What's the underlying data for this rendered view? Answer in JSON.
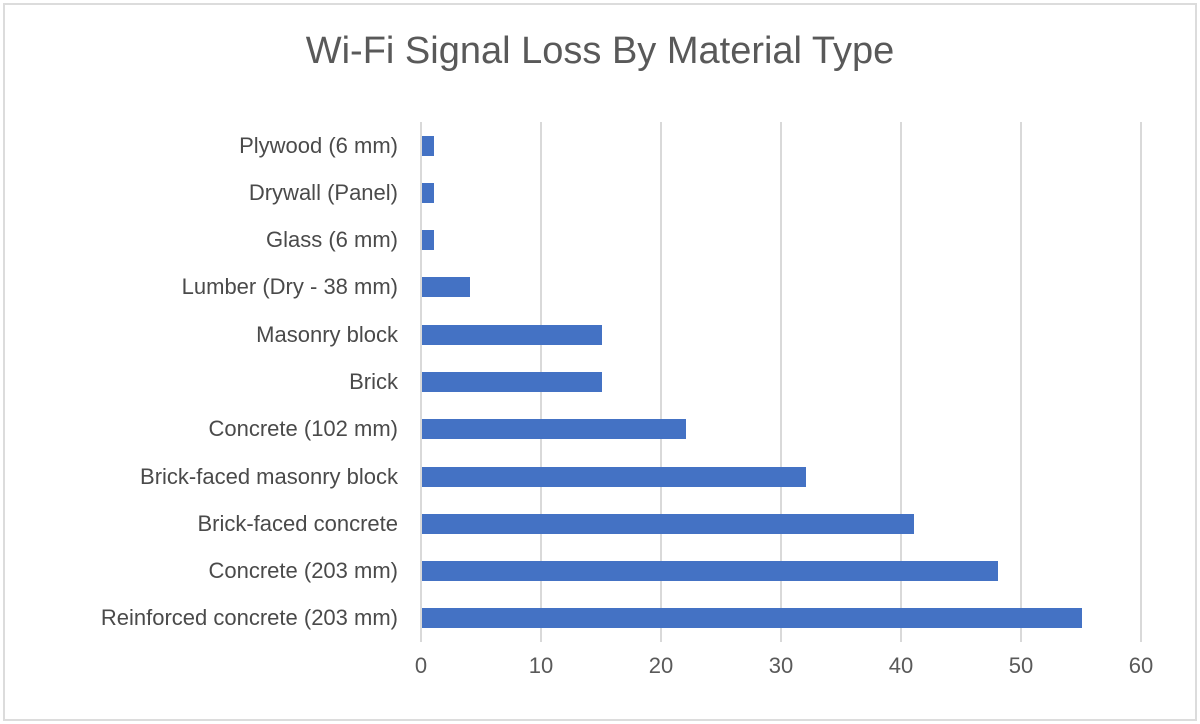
{
  "chart_data": {
    "type": "bar",
    "orientation": "horizontal",
    "title": "Wi-Fi Signal Loss By Material Type",
    "categories": [
      "Plywood (6 mm)",
      "Drywall (Panel)",
      "Glass (6 mm)",
      "Lumber (Dry - 38 mm)",
      "Masonry block",
      "Brick",
      "Concrete (102 mm)",
      "Brick-faced masonry block",
      "Brick-faced concrete",
      "Concrete (203 mm)",
      "Reinforced concrete (203 mm)"
    ],
    "values": [
      1,
      1,
      1,
      4,
      15,
      15,
      22,
      32,
      41,
      48,
      55
    ],
    "xlabel": "",
    "ylabel": "",
    "xlim": [
      0,
      60
    ],
    "xticks": [
      0,
      10,
      20,
      30,
      40,
      50,
      60
    ],
    "grid": true,
    "legend": "none",
    "colors": {
      "bar": "#4472C4",
      "gridline": "#D9D9D9",
      "title_text": "#595959",
      "category_text": "#4A4A4A",
      "tick_text": "#595959",
      "frame_border": "#DCDCDC"
    }
  }
}
